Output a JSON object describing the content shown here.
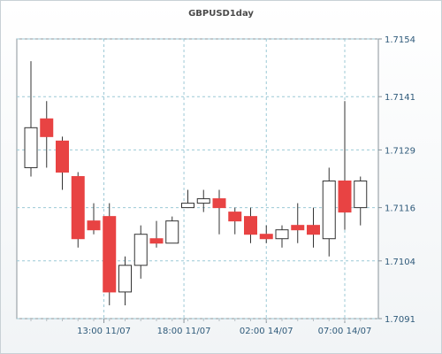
{
  "chart_data": {
    "type": "candlestick",
    "title": "GBPUSD1day",
    "ylim": [
      1.7091,
      1.7154
    ],
    "y_ticks": [
      "1.7154",
      "1.7141",
      "1.7129",
      "1.7116",
      "1.7104",
      "1.7091"
    ],
    "x_ticks": [
      "13:00 11/07",
      "18:00 11/07",
      "02:00 14/07",
      "07:00 14/07"
    ],
    "grid": true,
    "up_color": "#ffffff",
    "down_color": "#e84343",
    "candles": [
      {
        "open": 1.7125,
        "high": 1.7149,
        "low": 1.7123,
        "close": 1.7134
      },
      {
        "open": 1.7136,
        "high": 1.714,
        "low": 1.7125,
        "close": 1.7132
      },
      {
        "open": 1.7131,
        "high": 1.7132,
        "low": 1.712,
        "close": 1.7124
      },
      {
        "open": 1.7123,
        "high": 1.7124,
        "low": 1.7107,
        "close": 1.7109
      },
      {
        "open": 1.7113,
        "high": 1.7117,
        "low": 1.711,
        "close": 1.7111
      },
      {
        "open": 1.7114,
        "high": 1.7117,
        "low": 1.7094,
        "close": 1.7097
      },
      {
        "open": 1.7097,
        "high": 1.7105,
        "low": 1.7094,
        "close": 1.7103
      },
      {
        "open": 1.7103,
        "high": 1.7112,
        "low": 1.71,
        "close": 1.711
      },
      {
        "open": 1.7109,
        "high": 1.7113,
        "low": 1.7107,
        "close": 1.7108
      },
      {
        "open": 1.7108,
        "high": 1.7114,
        "low": 1.7108,
        "close": 1.7113
      },
      {
        "open": 1.7116,
        "high": 1.712,
        "low": 1.7116,
        "close": 1.7117
      },
      {
        "open": 1.7117,
        "high": 1.712,
        "low": 1.7115,
        "close": 1.7118
      },
      {
        "open": 1.7118,
        "high": 1.712,
        "low": 1.711,
        "close": 1.7116
      },
      {
        "open": 1.7115,
        "high": 1.7116,
        "low": 1.711,
        "close": 1.7113
      },
      {
        "open": 1.7114,
        "high": 1.7116,
        "low": 1.7108,
        "close": 1.711
      },
      {
        "open": 1.711,
        "high": 1.7112,
        "low": 1.7108,
        "close": 1.7109
      },
      {
        "open": 1.7109,
        "high": 1.7112,
        "low": 1.7107,
        "close": 1.7111
      },
      {
        "open": 1.7112,
        "high": 1.7117,
        "low": 1.7108,
        "close": 1.7111
      },
      {
        "open": 1.7112,
        "high": 1.7116,
        "low": 1.7107,
        "close": 1.711
      },
      {
        "open": 1.7109,
        "high": 1.7125,
        "low": 1.7105,
        "close": 1.7122
      },
      {
        "open": 1.7122,
        "high": 1.714,
        "low": 1.7111,
        "close": 1.7115
      },
      {
        "open": 1.7116,
        "high": 1.7123,
        "low": 1.7112,
        "close": 1.7122
      }
    ]
  }
}
